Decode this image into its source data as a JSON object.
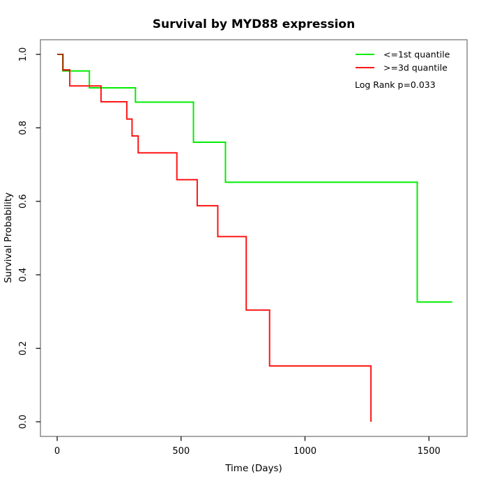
{
  "page": {
    "background": "#ffffff",
    "box_color": "#7a7a7a",
    "tick_color": "#000000"
  },
  "chart_data": {
    "type": "line",
    "variant": "kaplan-meier-step-curve",
    "title": "Survival by MYD88 expression",
    "xlabel": "Time (Days)",
    "ylabel": "Survival Probability",
    "xticks": [
      0,
      500,
      1000,
      1500
    ],
    "xtick_labels": [
      "0",
      "500",
      "1000",
      "1500"
    ],
    "yticks": [
      0.0,
      0.2,
      0.4,
      0.6,
      0.8,
      1.0
    ],
    "ytick_labels": [
      "0.0",
      "0.2",
      "0.4",
      "0.6",
      "0.8",
      "1.0"
    ],
    "xlim": [
      -67,
      1655
    ],
    "ylim": [
      -0.04,
      1.04
    ],
    "grid": false,
    "legend_position": "top-right",
    "annotation": "Log Rank p=0.033",
    "series": [
      {
        "name": "<=1st quantile",
        "color": "#00ee00",
        "x": [
          0,
          23,
          130,
          316,
          550,
          679,
          1453,
          1594
        ],
        "y": [
          1.0,
          0.955,
          0.909,
          0.87,
          0.761,
          0.652,
          0.326,
          0.326
        ]
      },
      {
        "name": ">=3d quantile",
        "color": "#ff1414",
        "x": [
          0,
          23,
          51,
          177,
          281,
          302,
          327,
          483,
          565,
          648,
          763,
          857,
          1266
        ],
        "y": [
          1.0,
          0.958,
          0.914,
          0.871,
          0.824,
          0.778,
          0.732,
          0.659,
          0.588,
          0.504,
          0.304,
          0.152,
          0.0
        ]
      }
    ],
    "overlap_segment": {
      "comment_color_of_initial_shared_segment": "#9c3d00",
      "x": [
        0,
        23,
        51
      ],
      "y": [
        1.0,
        0.9565,
        0.9565
      ]
    }
  }
}
